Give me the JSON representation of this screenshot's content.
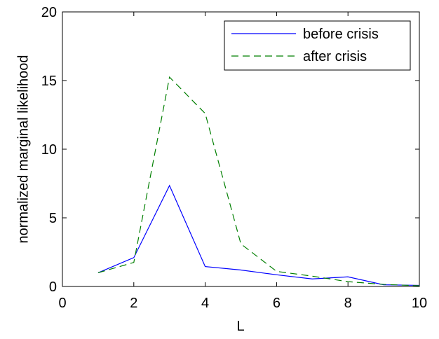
{
  "chart_data": {
    "type": "line",
    "xlabel": "L",
    "ylabel": "normalized marginal likelihood",
    "x": [
      1,
      2,
      3,
      4,
      5,
      6,
      7,
      8,
      9,
      10
    ],
    "series": [
      {
        "name": "before crisis",
        "color": "#0000ff",
        "dash": "solid",
        "values": [
          1.0,
          2.1,
          7.35,
          1.45,
          1.2,
          0.85,
          0.55,
          0.7,
          0.12,
          0.08
        ]
      },
      {
        "name": "after crisis",
        "color": "#007f00",
        "dash": "dashed",
        "values": [
          1.0,
          1.75,
          15.25,
          12.6,
          3.1,
          1.1,
          0.75,
          0.35,
          0.15,
          0.05
        ]
      }
    ],
    "xlim": [
      0,
      10
    ],
    "xticks": [
      0,
      2,
      4,
      6,
      8,
      10
    ],
    "ylim": [
      0,
      20
    ],
    "yticks": [
      0,
      5,
      10,
      15,
      20
    ],
    "grid": false,
    "legend": "upper right"
  }
}
